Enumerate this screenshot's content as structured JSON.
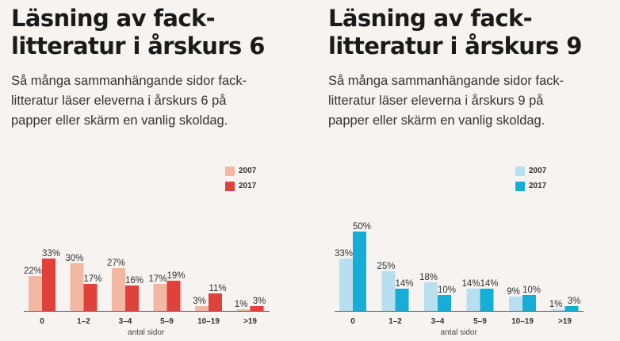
{
  "palette": {
    "left": {
      "c2007": "#f2b8a2",
      "c2017": "#e0423b"
    },
    "right": {
      "c2007": "#b8dff0",
      "c2017": "#16aed6"
    }
  },
  "chart_data": [
    {
      "type": "bar",
      "title": "Läsning av fack-\nlitteratur i årskurs 6",
      "subtitle": "Så många sammanhängande sidor fack-\nlitteratur läser eleverna i årskurs 6 på\npapper eller skärm en vanlig skoldag.",
      "xlabel": "antal sidor",
      "categories": [
        "0",
        "1–2",
        "3–4",
        "5–9",
        "10–19",
        ">19"
      ],
      "series": [
        {
          "name": "2007",
          "values": [
            22,
            30,
            27,
            17,
            3,
            1
          ],
          "labels": [
            "22%",
            "30%",
            "27%",
            "17%",
            "3%",
            "1%"
          ]
        },
        {
          "name": "2017",
          "values": [
            33,
            17,
            16,
            19,
            11,
            3
          ],
          "labels": [
            "33%",
            "17%",
            "16%",
            "19%",
            "11%",
            "3%"
          ]
        }
      ],
      "ylim": [
        0,
        50
      ],
      "legend_position": "right"
    },
    {
      "type": "bar",
      "title": "Läsning av fack-\nlitteratur i årskurs 9",
      "subtitle": "Så många sammanhängande sidor fack-\nlitteratur läser eleverna i årskurs 9 på\npapper eller skärm en vanlig skoldag.",
      "xlabel": "antal sidor",
      "categories": [
        "0",
        "1–2",
        "3–4",
        "5–9",
        "10–19",
        ">19"
      ],
      "series": [
        {
          "name": "2007",
          "values": [
            33,
            25,
            18,
            14,
            9,
            1
          ],
          "labels": [
            "33%",
            "25%",
            "18%",
            "14%",
            "9%",
            "1%"
          ]
        },
        {
          "name": "2017",
          "values": [
            50,
            14,
            10,
            14,
            10,
            3
          ],
          "labels": [
            "50%",
            "14%",
            "10%",
            "14%",
            "10%",
            "3%"
          ]
        }
      ],
      "ylim": [
        0,
        50
      ],
      "legend_position": "right"
    }
  ]
}
